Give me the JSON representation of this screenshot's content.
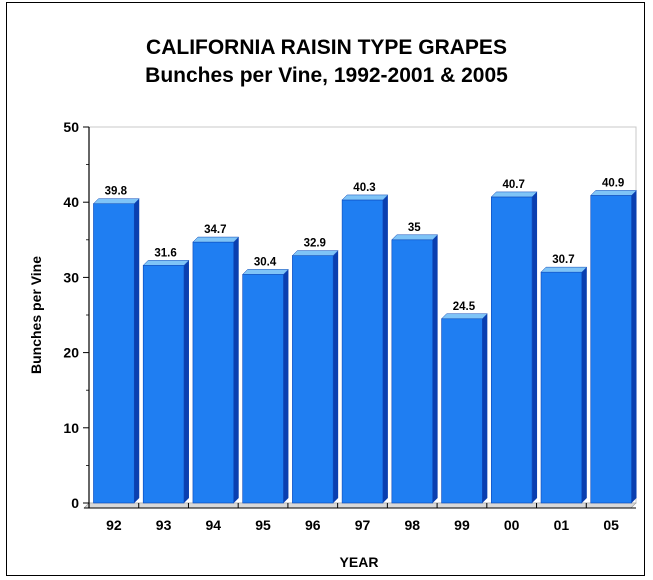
{
  "chart_data": {
    "type": "bar",
    "title": "CALIFORNIA RAISIN TYPE GRAPES",
    "subtitle": "Bunches per Vine, 1992-2001 & 2005",
    "xlabel": "YEAR",
    "ylabel": "Bunches per Vine",
    "categories": [
      "92",
      "93",
      "94",
      "95",
      "96",
      "97",
      "98",
      "99",
      "00",
      "01",
      "05"
    ],
    "values": [
      39.8,
      31.6,
      34.7,
      30.4,
      32.9,
      40.3,
      35,
      24.5,
      40.7,
      30.7,
      40.9
    ],
    "value_labels": [
      "39.8",
      "31.6",
      "34.7",
      "30.4",
      "32.9",
      "40.3",
      "35",
      "24.5",
      "40.7",
      "30.7",
      "40.9"
    ],
    "ylim": [
      0,
      50
    ],
    "yticks": [
      "0",
      "10",
      "20",
      "30",
      "40",
      "50"
    ],
    "grid": false,
    "colors": {
      "bar_front": "#1f7ef2",
      "bar_top": "#7fc4f7",
      "bar_side": "#0a3fb0"
    }
  }
}
